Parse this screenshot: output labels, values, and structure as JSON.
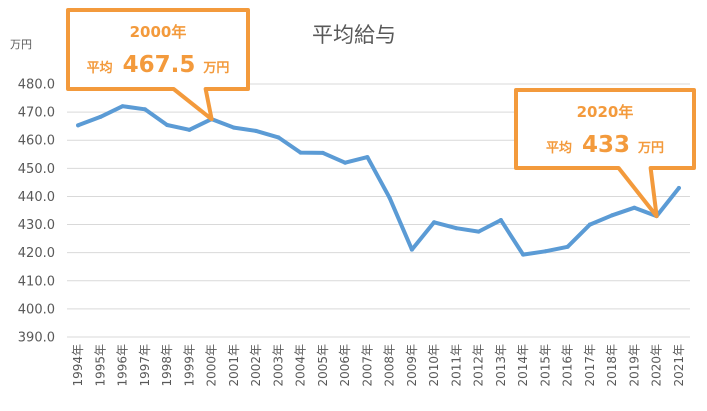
{
  "chart_data": {
    "type": "line",
    "title": "平均給与",
    "unit_label": "万円",
    "xlabel": "",
    "ylabel": "",
    "ylim": [
      390,
      480
    ],
    "yticks": [
      "390.0",
      "400.0",
      "410.0",
      "420.0",
      "430.0",
      "440.0",
      "450.0",
      "460.0",
      "470.0",
      "480.0"
    ],
    "grid": true,
    "legend": "none",
    "categories": [
      "1994年",
      "1995年",
      "1996年",
      "1997年",
      "1998年",
      "1999年",
      "2000年",
      "2001年",
      "2002年",
      "2003年",
      "2004年",
      "2005年",
      "2006年",
      "2007年",
      "2008年",
      "2009年",
      "2010年",
      "2011年",
      "2012年",
      "2013年",
      "2014年",
      "2015年",
      "2016年",
      "2017年",
      "2018年",
      "2019年",
      "2020年",
      "2021年"
    ],
    "series": [
      {
        "color": "#5b9bd5",
        "values": [
          465.3,
          468.3,
          472.1,
          471.0,
          465.4,
          463.7,
          467.5,
          464.5,
          463.3,
          461.0,
          455.6,
          455.5,
          452.0,
          454.0,
          439.5,
          421.1,
          430.8,
          428.7,
          427.5,
          431.6,
          419.3,
          420.5,
          422.1,
          430.0,
          433.3,
          436.0,
          433.0,
          443.0
        ]
      }
    ],
    "annotations": [
      {
        "category": "2000年",
        "year_label": "2000年",
        "prefix": "平均",
        "value_text": "467.5",
        "suffix": "万円"
      },
      {
        "category": "2020年",
        "year_label": "2020年",
        "prefix": "平均",
        "value_text": "433",
        "suffix": "万円"
      }
    ],
    "accent_color": "#f39a3c"
  }
}
